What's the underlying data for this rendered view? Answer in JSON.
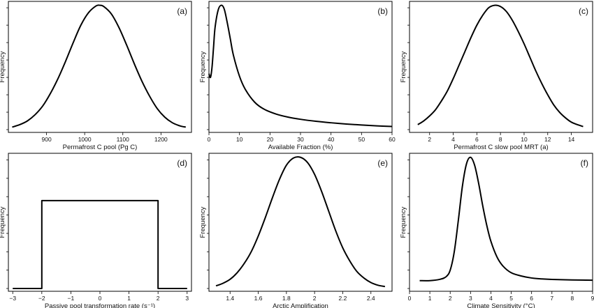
{
  "chart_data": [
    {
      "panel_tag": "(a)",
      "type": "line",
      "xlabel": "Permafrost C pool (Pg C)",
      "ylabel": "Frequency",
      "xlim": [
        800,
        1280
      ],
      "ylim": [
        0,
        1.02
      ],
      "xticks": [
        900,
        1000,
        1100,
        1200
      ],
      "y_tick_count": 8,
      "x": [
        810,
        830,
        850,
        870,
        890,
        910,
        930,
        950,
        970,
        990,
        1010,
        1030,
        1040,
        1050,
        1070,
        1090,
        1110,
        1130,
        1150,
        1170,
        1190,
        1210,
        1230,
        1250,
        1265
      ],
      "y": [
        0.02,
        0.04,
        0.07,
        0.12,
        0.19,
        0.29,
        0.41,
        0.55,
        0.7,
        0.84,
        0.94,
        0.995,
        1.0,
        0.99,
        0.93,
        0.82,
        0.68,
        0.53,
        0.39,
        0.27,
        0.17,
        0.1,
        0.055,
        0.03,
        0.02
      ]
    },
    {
      "panel_tag": "(b)",
      "type": "line",
      "xlabel": "Available Fraction (%)",
      "ylabel": "Frequency",
      "xlim": [
        0,
        60
      ],
      "ylim": [
        0,
        1.02
      ],
      "xticks": [
        0,
        10,
        20,
        30,
        40,
        50,
        60
      ],
      "y_tick_count": 8,
      "x": [
        0,
        0.5,
        1,
        1.5,
        2,
        3,
        4,
        5,
        6,
        7,
        8,
        10,
        12,
        15,
        18,
        22,
        26,
        30,
        35,
        40,
        45,
        50,
        55,
        60
      ],
      "y": [
        0.45,
        0.42,
        0.5,
        0.66,
        0.82,
        0.96,
        1.0,
        0.97,
        0.86,
        0.73,
        0.6,
        0.43,
        0.32,
        0.22,
        0.165,
        0.125,
        0.1,
        0.083,
        0.067,
        0.055,
        0.045,
        0.037,
        0.03,
        0.025
      ]
    },
    {
      "panel_tag": "(c)",
      "type": "line",
      "xlabel": "Permafrost C slow pool MRT (a)",
      "ylabel": "Frequency",
      "xlim": [
        0.3,
        15.8
      ],
      "ylim": [
        0,
        1.02
      ],
      "xticks": [
        2,
        4,
        6,
        8,
        10,
        12,
        14
      ],
      "y_tick_count": 8,
      "x": [
        1,
        1.5,
        2,
        2.5,
        3,
        3.5,
        4,
        4.5,
        5,
        5.5,
        6,
        6.5,
        7,
        7.5,
        8,
        8.5,
        9,
        9.5,
        10,
        10.5,
        11,
        11.5,
        12,
        12.5,
        13,
        13.5,
        14,
        14.5,
        15
      ],
      "y": [
        0.04,
        0.07,
        0.11,
        0.16,
        0.23,
        0.31,
        0.41,
        0.52,
        0.63,
        0.74,
        0.84,
        0.92,
        0.98,
        1.0,
        0.99,
        0.95,
        0.88,
        0.79,
        0.69,
        0.58,
        0.47,
        0.37,
        0.28,
        0.2,
        0.14,
        0.095,
        0.06,
        0.04,
        0.025
      ]
    },
    {
      "panel_tag": "(d)",
      "type": "line",
      "xlabel": "Passive pool transformation rate (s⁻¹)",
      "ylabel": "Frequency",
      "xlim": [
        -3.15,
        3.15
      ],
      "ylim": [
        0,
        1.02
      ],
      "xticks": [
        -3,
        -2,
        -1,
        0,
        1,
        2,
        3
      ],
      "y_tick_count": 8,
      "x": [
        -3,
        -2,
        -2,
        2,
        2,
        3
      ],
      "y": [
        0,
        0,
        0.67,
        0.67,
        0,
        0
      ]
    },
    {
      "panel_tag": "(e)",
      "type": "line",
      "xlabel": "Arctic Amplification",
      "ylabel": "Frequency",
      "xlim": [
        1.25,
        2.55
      ],
      "ylim": [
        0,
        1.02
      ],
      "xticks": [
        1.4,
        1.6,
        1.8,
        2.0,
        2.2,
        2.4
      ],
      "x": [
        1.3,
        1.35,
        1.4,
        1.45,
        1.5,
        1.55,
        1.6,
        1.65,
        1.7,
        1.75,
        1.8,
        1.85,
        1.9,
        1.95,
        2.0,
        2.05,
        2.1,
        2.15,
        2.2,
        2.25,
        2.3,
        2.35,
        2.4,
        2.45,
        2.5
      ],
      "y": [
        0.02,
        0.04,
        0.07,
        0.12,
        0.19,
        0.28,
        0.4,
        0.54,
        0.69,
        0.83,
        0.94,
        0.995,
        1.0,
        0.96,
        0.87,
        0.74,
        0.59,
        0.44,
        0.31,
        0.21,
        0.13,
        0.08,
        0.045,
        0.025,
        0.015
      ],
      "y_tick_count": 8
    },
    {
      "panel_tag": "(f)",
      "type": "line",
      "xlabel": "Climate Sensitivity (°C)",
      "ylabel": "Frequency",
      "xlim": [
        0,
        9
      ],
      "ylim": [
        0,
        1.02
      ],
      "xticks": [
        0,
        1,
        2,
        3,
        4,
        5,
        6,
        7,
        8,
        9
      ],
      "y_tick_count": 8,
      "x": [
        0.5,
        1,
        1.5,
        1.8,
        2,
        2.2,
        2.4,
        2.6,
        2.8,
        3,
        3.2,
        3.4,
        3.6,
        3.8,
        4,
        4.3,
        4.6,
        5,
        5.5,
        6,
        6.5,
        7,
        8,
        9
      ],
      "y": [
        0.06,
        0.06,
        0.07,
        0.09,
        0.14,
        0.28,
        0.52,
        0.78,
        0.95,
        1.0,
        0.94,
        0.8,
        0.63,
        0.48,
        0.36,
        0.24,
        0.17,
        0.12,
        0.095,
        0.08,
        0.073,
        0.069,
        0.065,
        0.063
      ]
    }
  ]
}
